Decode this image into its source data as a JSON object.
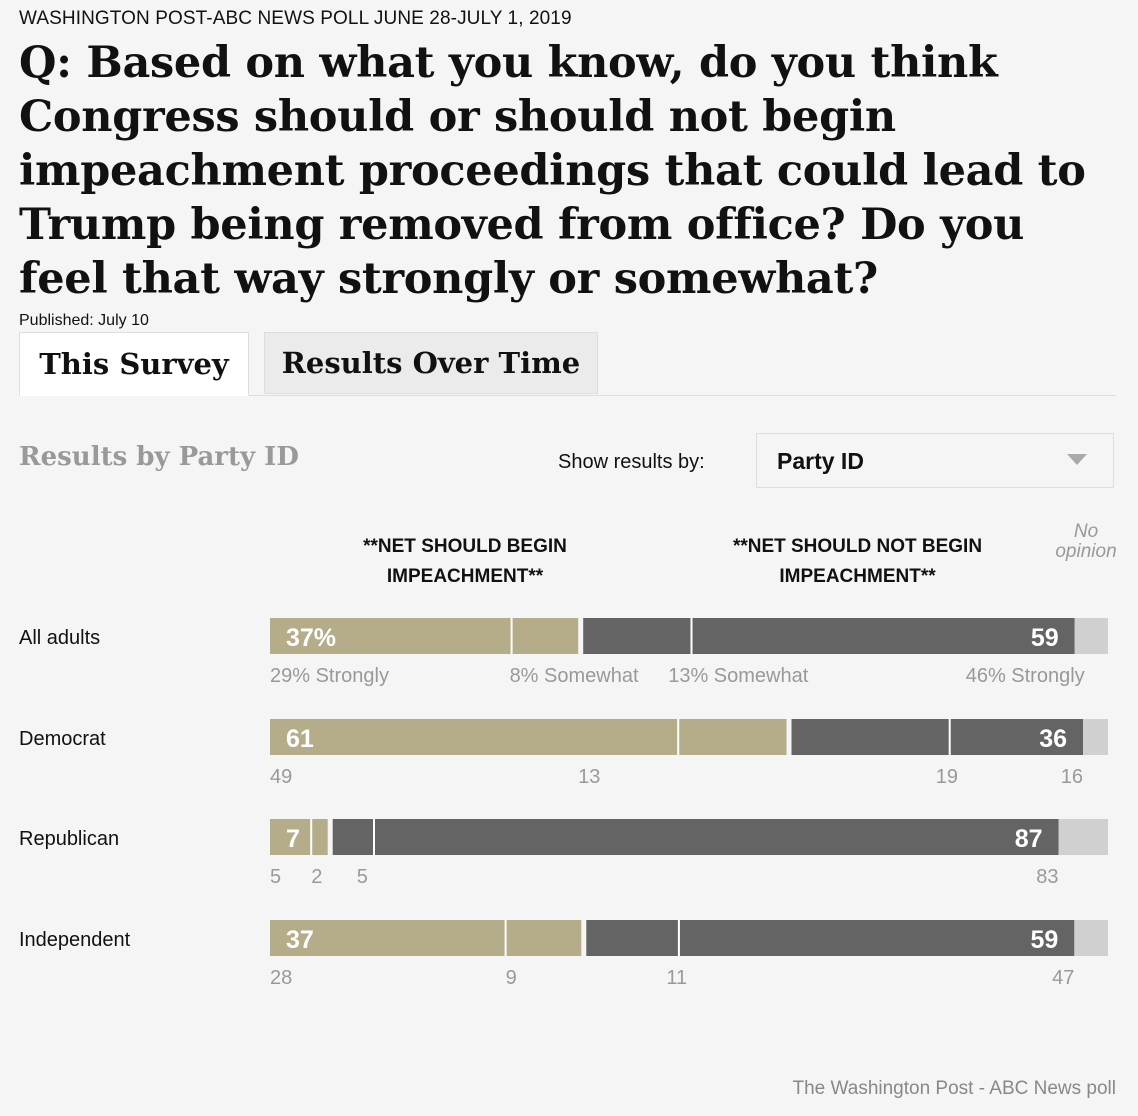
{
  "header": {
    "kicker": "WASHINGTON POST-ABC NEWS POLL JUNE 28-JULY 1, 2019",
    "question": "Q: Based on what you know, do you think Congress should or should not begin impeachment proceedings that could lead to Trump being removed from office? Do you feel that way strongly or somewhat?",
    "published": "Published: July 10"
  },
  "tabs": {
    "this_survey": "This Survey",
    "over_time": "Results Over Time"
  },
  "controls": {
    "section_title": "Results by Party ID",
    "show_label": "Show results by:",
    "select_value": "Party ID"
  },
  "columns": {
    "begin": "**NET SHOULD BEGIN IMPEACHMENT**",
    "not_begin": "**NET SHOULD NOT BEGIN IMPEACHMENT**",
    "no_opinion": "No opinion"
  },
  "colors": {
    "begin": "#b5ad8a",
    "not_begin": "#646464",
    "no_opinion": "#d0d0d0",
    "sub_label": "#999999"
  },
  "footer": "The Washington Post - ABC News poll",
  "chart_data": {
    "type": "bar",
    "orientation": "horizontal",
    "stacked": true,
    "categories": [
      "All adults",
      "Democrat",
      "Republican",
      "Independent"
    ],
    "series": [
      {
        "name": "Should begin - Strongly",
        "values": [
          29,
          49,
          5,
          28
        ]
      },
      {
        "name": "Should begin - Somewhat",
        "values": [
          8,
          13,
          2,
          9
        ]
      },
      {
        "name": "Should not begin - Somewhat",
        "values": [
          13,
          19,
          5,
          11
        ]
      },
      {
        "name": "Should not begin - Strongly",
        "values": [
          46,
          16,
          83,
          47
        ]
      },
      {
        "name": "No opinion",
        "values": [
          4,
          3,
          6,
          4
        ]
      }
    ],
    "net_labels": [
      {
        "begin": "37%",
        "not_begin": "59"
      },
      {
        "begin": "61",
        "not_begin": "36"
      },
      {
        "begin": "7",
        "not_begin": "87"
      },
      {
        "begin": "37",
        "not_begin": "59"
      }
    ],
    "sub_labels": [
      [
        "29% Strongly",
        "8% Somewhat",
        "13% Somewhat",
        "46% Strongly"
      ],
      [
        "49",
        "13",
        "19",
        "16"
      ],
      [
        "5",
        "2",
        "5",
        "83"
      ],
      [
        "28",
        "9",
        "11",
        "47"
      ]
    ],
    "xlim": [
      0,
      100
    ]
  }
}
